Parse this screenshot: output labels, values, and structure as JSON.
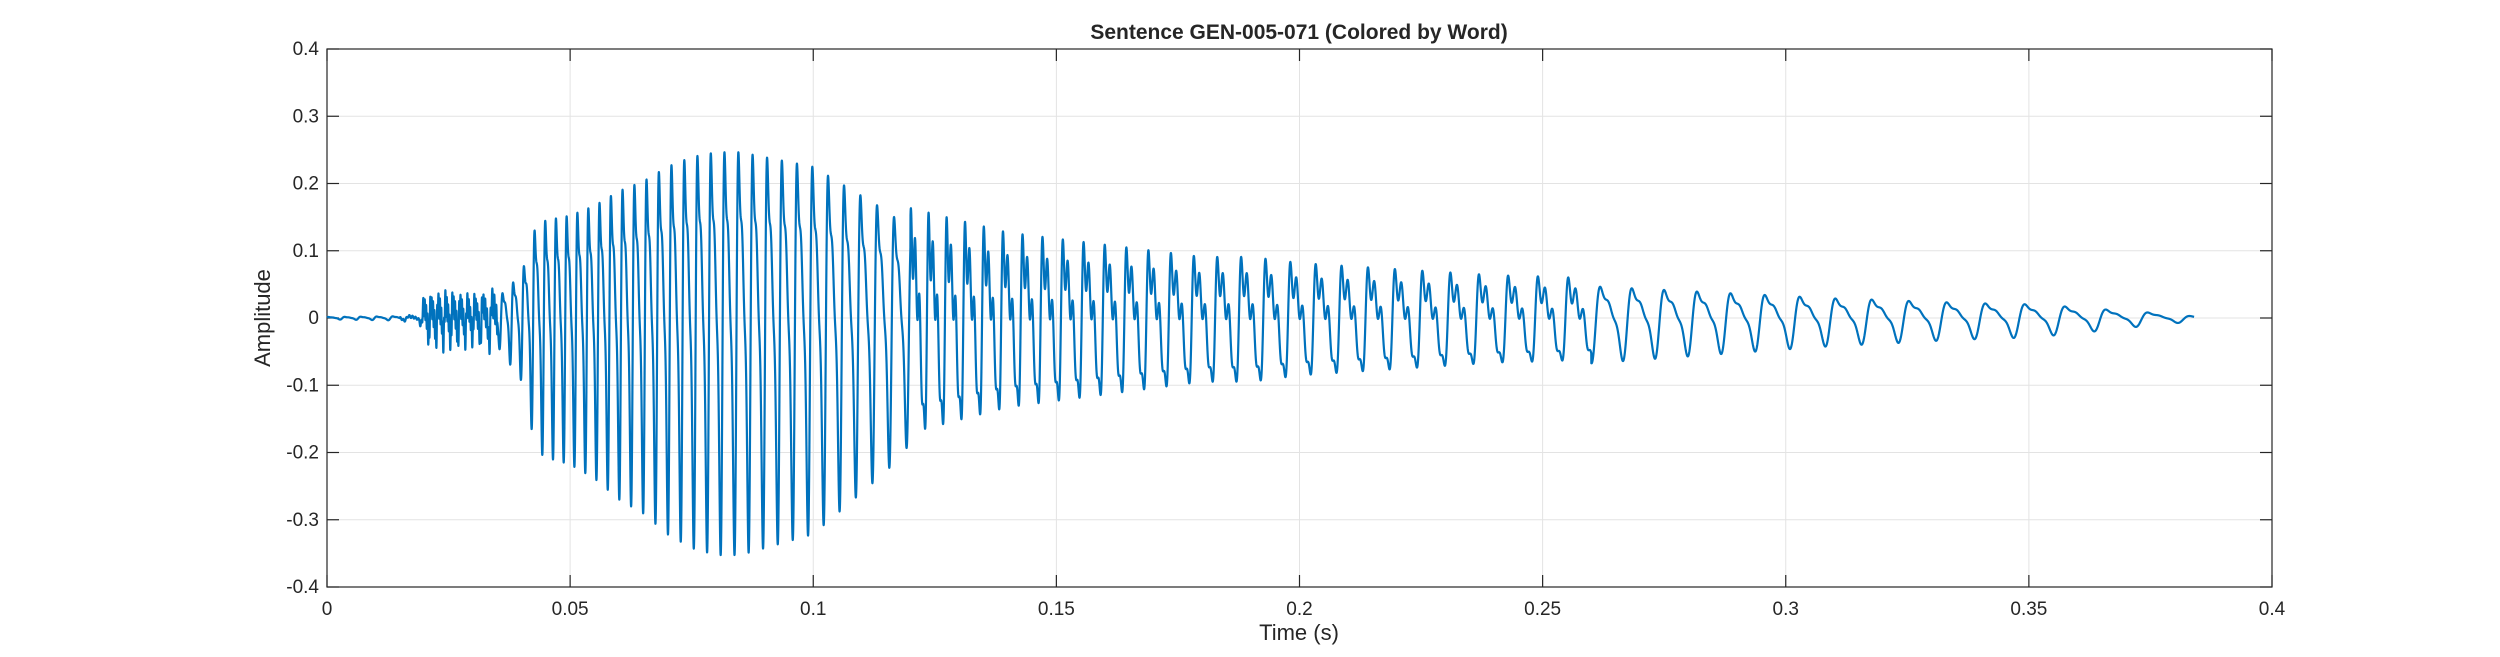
{
  "chart_data": {
    "type": "line",
    "title": "Sentence GEN-005-071 (Colored by Word)",
    "xlabel": "Time (s)",
    "ylabel": "Amplitude",
    "xlim": [
      0,
      0.4
    ],
    "ylim": [
      -0.4,
      0.4
    ],
    "xticks": [
      0,
      0.05,
      0.1,
      0.15,
      0.2,
      0.25,
      0.3,
      0.35,
      0.4
    ],
    "xtick_labels": [
      "0",
      "0.05",
      "0.1",
      "0.15",
      "0.2",
      "0.25",
      "0.3",
      "0.35",
      "0.4"
    ],
    "yticks": [
      -0.4,
      -0.3,
      -0.2,
      -0.1,
      0,
      0.1,
      0.2,
      0.3,
      0.4
    ],
    "ytick_labels": [
      "-0.4",
      "-0.3",
      "-0.2",
      "-0.1",
      "0",
      "0.1",
      "0.2",
      "0.3",
      "0.4"
    ],
    "grid": true,
    "line_color": "#0072BD",
    "series": [
      {
        "x": [
          0,
          0.01,
          0.019,
          0.02,
          0.025,
          0.03,
          0.035,
          0.037,
          0.04,
          0.043,
          0.045,
          0.05,
          0.055,
          0.06,
          0.065,
          0.07,
          0.075,
          0.08,
          0.085,
          0.09,
          0.095,
          0.1,
          0.105,
          0.11,
          0.115,
          0.12,
          0.13,
          0.14,
          0.15,
          0.16,
          0.17,
          0.18,
          0.19,
          0.2,
          0.21,
          0.22,
          0.23,
          0.24,
          0.25,
          0.26,
          0.27,
          0.28,
          0.29,
          0.3,
          0.31,
          0.32,
          0.33,
          0.34,
          0.35,
          0.36,
          0.37,
          0.38,
          0.384
        ],
        "envelope": [
          0.002,
          0.003,
          0.004,
          0.03,
          0.035,
          0.03,
          0.04,
          0.06,
          0.09,
          0.19,
          0.2,
          0.21,
          0.23,
          0.26,
          0.28,
          0.31,
          0.33,
          0.34,
          0.34,
          0.33,
          0.32,
          0.31,
          0.28,
          0.25,
          0.22,
          0.18,
          0.16,
          0.14,
          0.13,
          0.12,
          0.11,
          0.1,
          0.1,
          0.09,
          0.085,
          0.08,
          0.075,
          0.07,
          0.068,
          0.065,
          0.06,
          0.055,
          0.05,
          0.045,
          0.04,
          0.037,
          0.033,
          0.03,
          0.028,
          0.022,
          0.014,
          0.008,
          0.003
        ],
        "pitch_period_s": [
          0.0033,
          0.0033,
          0.0033,
          0.0015,
          0.0015,
          0.0015,
          0.0022,
          0.0022,
          0.0022,
          0.0022,
          0.0022,
          0.0022,
          0.0023,
          0.0024,
          0.0025,
          0.0026,
          0.0027,
          0.0028,
          0.0029,
          0.003,
          0.0031,
          0.0032,
          0.0033,
          0.0034,
          0.0035,
          0.0036,
          0.0038,
          0.004,
          0.0042,
          0.0044,
          0.0046,
          0.0048,
          0.005,
          0.0052,
          0.0054,
          0.0056,
          0.0058,
          0.006,
          0.0062,
          0.0064,
          0.0066,
          0.0068,
          0.007,
          0.0072,
          0.0074,
          0.0076,
          0.0078,
          0.008,
          0.0082,
          0.0084,
          0.0086,
          0.0088,
          0.009
        ]
      }
    ]
  }
}
